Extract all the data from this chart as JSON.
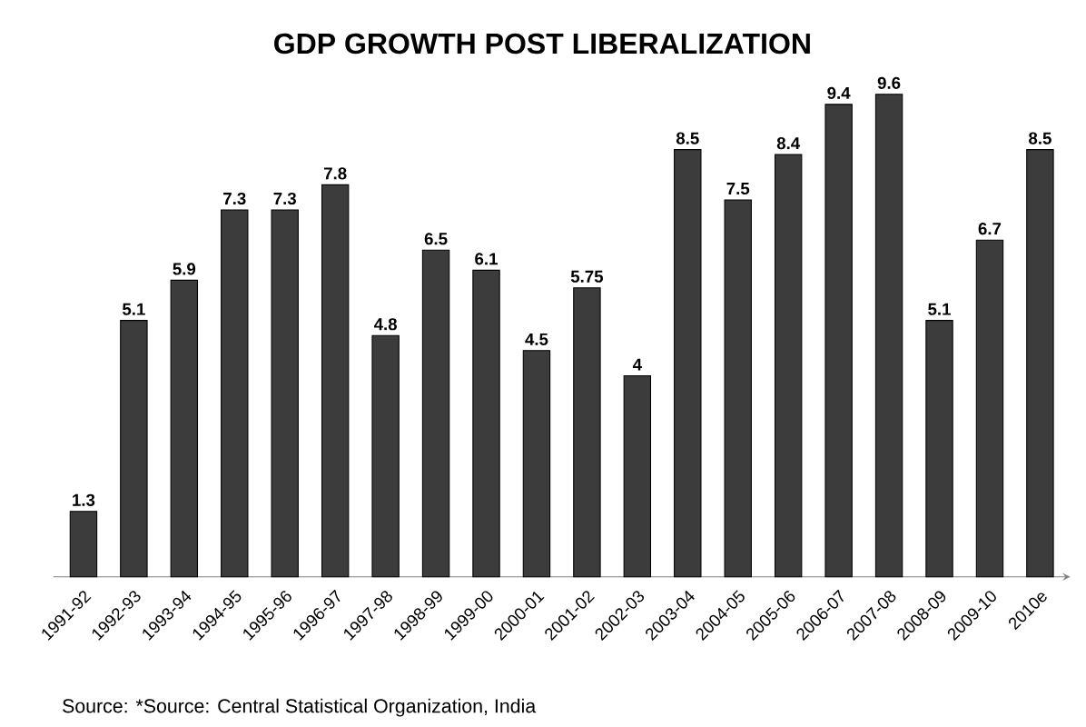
{
  "chart_data": {
    "type": "bar",
    "title": "GDP GROWTH POST LIBERALIZATION",
    "categories": [
      "1991-92",
      "1992-93",
      "1993-94",
      "1994-95",
      "1995-96",
      "1996-97",
      "1997-98",
      "1998-99",
      "1999-00",
      "2000-01",
      "2001-02",
      "2002-03",
      "2003-04",
      "2004-05",
      "2005-06",
      "2006-07",
      "2007-08",
      "2008-09",
      "2009-10",
      "2010e"
    ],
    "values": [
      1.3,
      5.1,
      5.9,
      7.3,
      7.3,
      7.8,
      4.8,
      6.5,
      6.1,
      4.5,
      5.75,
      4,
      8.5,
      7.5,
      8.4,
      9.4,
      9.6,
      5.1,
      6.7,
      8.5
    ],
    "value_labels": [
      "1.3",
      "5.1",
      "5.9",
      "7.3",
      "7.3",
      "7.8",
      "4.8",
      "6.5",
      "6.1",
      "4.5",
      "5.75",
      "4",
      "8.5",
      "7.5",
      "8.4",
      "9.4",
      "9.6",
      "5.1",
      "6.7",
      "8.5"
    ],
    "color": "#3c3c3c",
    "annotations": [
      "Source: *Source: Central Statistical Organization, India"
    ]
  }
}
